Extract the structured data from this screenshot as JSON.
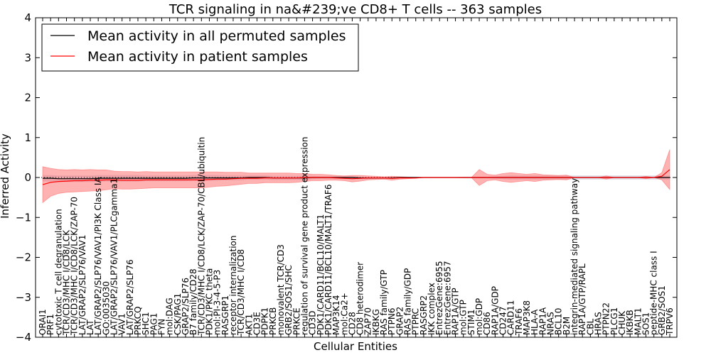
{
  "chart_data": {
    "type": "line",
    "title": "TCR signaling in na&#239;ve CD8+ T cells -- 363 samples",
    "xlabel": "Cellular Entities",
    "ylabel": "Inferred Activity",
    "ylim": [
      -4,
      4
    ],
    "yticks": [
      "4",
      "3",
      "2",
      "1",
      "0",
      "−1",
      "−2",
      "−3",
      "−4"
    ],
    "grid": false,
    "legend_position": "top-left",
    "colors": {
      "permuted": "#000000",
      "patient": "#ff0000",
      "patient_band": "#ff6666",
      "permuted_band": "#9999bb",
      "zero_line": "#000000"
    },
    "categories": [
      "ORAI1",
      "PRF1",
      "cytotoxic T cell degranulation",
      "TCR/CD3/MHC I/CD8/LCK",
      "TCR/CD3/MHC I/CD8/LCK/ZAP-70",
      "LAT/GRAP2/SLP76/VAV1",
      "LAT",
      "LAT/GRAP2/SLP76/VAV1/PI3K Class IA",
      "GO:0035030",
      "LAT/GRAP2/SLP76/VAV1/PLCgamma1",
      "VAV1",
      "LAT/GRAP2/SLP76",
      "PRKCQ",
      "SHC1",
      "PAG1",
      "FYN",
      "mol:DAG",
      "CSK/PAG1",
      "GRAP2/SLP76",
      "B7 family/CD28",
      "TCR/CD3/MHC I/CD8/LCK/ZAP-70/CBL/ubiquitin",
      "PDK1/PKC theta",
      "mol:PI-3-4-5-P3",
      "RASGRP1",
      "receptor internalization",
      "TCR/CD3/MHC I/CD8",
      "AKT1",
      "CD3E",
      "PDPK1",
      "PRKCB",
      "monovalent TCR/CD3",
      "GRB2/SOS1/SHC",
      "PRKCE",
      "regulation of survival gene product expression",
      "CD3D",
      "PDK1/CARD11/BCL10/MALT1",
      "PDK1/CARD11/BCL10/MALT1/TRAF6",
      "MAP3K14",
      "mol:Ca2+",
      "CD28",
      "CD8 heterodimer",
      "ZAP70",
      "IKBKG",
      "RAS family/GTP",
      "PTPN6",
      "GRAP2",
      "RAS family/GDP",
      "PTPRC",
      "RASGRP2",
      "IKK complex",
      "EntrezGene:6955",
      "EntrezGene:6957",
      "RAP1A/GTP",
      "mol:GTP",
      "STIM1",
      "mol:GDP",
      "CD86",
      "RAP1A/GDP",
      "CD247",
      "CARD11",
      "TRAF6",
      "MAP3K8",
      "HLA-A",
      "RAP1A",
      "NRAS",
      "BCL10",
      "B2M",
      "integrin-mediated signaling pathway",
      "RAP1A/GTP/RAPL",
      "CBL",
      "HRAS",
      "PTPN22",
      "PLCG1",
      "CHUK",
      "IKBKB",
      "MALT1",
      "SOS1",
      "peptide-MHC class I",
      "GRB2/SOS1",
      "TRPV6"
    ],
    "series": [
      {
        "name": "Mean activity in all permuted samples",
        "values": [
          -0.02,
          -0.02,
          -0.03,
          -0.03,
          -0.03,
          -0.03,
          -0.03,
          -0.02,
          -0.02,
          -0.02,
          -0.02,
          -0.02,
          -0.02,
          -0.02,
          -0.02,
          -0.02,
          -0.02,
          -0.02,
          -0.02,
          -0.01,
          -0.01,
          -0.01,
          -0.01,
          -0.01,
          -0.01,
          -0.01,
          0.0,
          0.0,
          0.0,
          -0.01,
          -0.01,
          -0.01,
          -0.01,
          -0.01,
          0.0,
          0.0,
          0.0,
          0.0,
          0.0,
          0.0,
          -0.01,
          -0.01,
          -0.01,
          -0.01,
          -0.01,
          0.0,
          0.0,
          0.0,
          0.0,
          0.0,
          0.0,
          0.0,
          0.0,
          0.0,
          0.0,
          0.0,
          0.0,
          0.0,
          0.0,
          0.0,
          0.0,
          0.0,
          0.0,
          0.0,
          0.0,
          0.0,
          0.0,
          0.0,
          0.0,
          0.0,
          0.0,
          0.0,
          0.0,
          0.0,
          0.0,
          0.0,
          0.0,
          0.0,
          0.0,
          0.0
        ],
        "spread": [
          0.08,
          0.08,
          0.08,
          0.08,
          0.08,
          0.08,
          0.08,
          0.08,
          0.08,
          0.08,
          0.08,
          0.08,
          0.08,
          0.07,
          0.07,
          0.07,
          0.07,
          0.07,
          0.07,
          0.07,
          0.07,
          0.07,
          0.07,
          0.06,
          0.06,
          0.06,
          0.05,
          0.05,
          0.05,
          0.05,
          0.05,
          0.05,
          0.05,
          0.05,
          0.04,
          0.03,
          0.03,
          0.03,
          0.03,
          0.03,
          0.03,
          0.03,
          0.02,
          0.02,
          0.02,
          0.02,
          0.02,
          0.02,
          0.01,
          0.01,
          0.01,
          0.01,
          0.01,
          0.02,
          0.02,
          0.02,
          0.02,
          0.03,
          0.04,
          0.05,
          0.05,
          0.05,
          0.05,
          0.05,
          0.05,
          0.05,
          0.05,
          0.05,
          0.05,
          0.05,
          0.05,
          0.05,
          0.05,
          0.05,
          0.05,
          0.05,
          0.05,
          0.05,
          0.05,
          0.05
        ]
      },
      {
        "name": "Mean activity in patient samples",
        "values": [
          -0.18,
          -0.12,
          -0.1,
          -0.09,
          -0.08,
          -0.08,
          -0.07,
          -0.07,
          -0.06,
          -0.06,
          -0.07,
          -0.07,
          -0.07,
          -0.06,
          -0.06,
          -0.06,
          -0.06,
          -0.06,
          -0.06,
          -0.06,
          -0.06,
          -0.05,
          -0.04,
          -0.04,
          -0.03,
          -0.02,
          -0.02,
          -0.02,
          -0.01,
          -0.01,
          -0.01,
          -0.01,
          -0.01,
          0.0,
          0.0,
          0.0,
          0.0,
          -0.01,
          -0.02,
          -0.03,
          -0.02,
          -0.01,
          -0.01,
          -0.01,
          -0.02,
          -0.01,
          -0.01,
          -0.01,
          0.0,
          0.0,
          0.0,
          0.0,
          0.0,
          0.0,
          0.0,
          0.0,
          0.0,
          0.0,
          0.0,
          0.0,
          0.0,
          0.0,
          0.0,
          0.0,
          0.0,
          0.0,
          0.0,
          0.0,
          0.0,
          0.0,
          0.0,
          0.0,
          0.0,
          0.0,
          0.0,
          0.0,
          0.0,
          0.0,
          0.03,
          0.2
        ],
        "spread": [
          0.45,
          0.35,
          0.3,
          0.28,
          0.28,
          0.27,
          0.27,
          0.26,
          0.25,
          0.22,
          0.22,
          0.22,
          0.21,
          0.21,
          0.2,
          0.2,
          0.2,
          0.2,
          0.2,
          0.2,
          0.2,
          0.19,
          0.18,
          0.17,
          0.16,
          0.15,
          0.13,
          0.13,
          0.12,
          0.12,
          0.12,
          0.12,
          0.11,
          0.1,
          0.08,
          0.08,
          0.07,
          0.06,
          0.06,
          0.08,
          0.07,
          0.05,
          0.04,
          0.03,
          0.05,
          0.03,
          0.02,
          0.01,
          0.0,
          0.0,
          0.0,
          0.0,
          0.0,
          0.0,
          0.0,
          0.0,
          0.0,
          0.0,
          0.0,
          0.0,
          0.0,
          0.0,
          0.0,
          0.0,
          0.0,
          0.0,
          0.0,
          0.0,
          0.0,
          0.0,
          0.0,
          0.0,
          0.0,
          0.0,
          0.0,
          0.0,
          0.0,
          0.0,
          0.05,
          0.5
        ],
        "spread_upper": [],
        "spread_lower": []
      }
    ],
    "band_bumps": [
      {
        "category": "mol:GDP",
        "upper": 0.2,
        "lower": -0.2
      },
      {
        "category": "CD247",
        "upper": 0.1,
        "lower": -0.1
      },
      {
        "category": "CARD11",
        "upper": 0.12,
        "lower": -0.12
      },
      {
        "category": "TRAF6",
        "upper": 0.1,
        "lower": -0.1
      },
      {
        "category": "CD86",
        "upper": 0.08,
        "lower": -0.08
      },
      {
        "category": "RAP1A/GDP",
        "upper": 0.06,
        "lower": -0.06
      },
      {
        "category": "MAP3K8",
        "upper": 0.08,
        "lower": -0.08
      },
      {
        "category": "HLA-A",
        "upper": 0.1,
        "lower": -0.1
      },
      {
        "category": "RAP1A",
        "upper": 0.07,
        "lower": -0.07
      },
      {
        "category": "NRAS",
        "upper": 0.06,
        "lower": -0.06
      },
      {
        "category": "BCL10",
        "upper": 0.05,
        "lower": -0.05
      },
      {
        "category": "B2M",
        "upper": 0.06,
        "lower": -0.06
      },
      {
        "category": "PTPN22",
        "upper": 0.04,
        "lower": -0.04
      },
      {
        "category": "SOS1",
        "upper": 0.03,
        "lower": -0.03
      },
      {
        "category": "GRB2/SOS1",
        "upper": 0.04,
        "lower": -0.04
      }
    ]
  }
}
